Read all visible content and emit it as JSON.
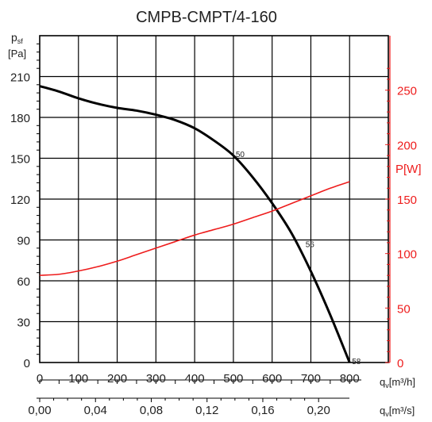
{
  "chart_data": {
    "type": "line",
    "title": "CMPB-CMPT/4-160",
    "colors": {
      "pressure": "#000000",
      "power": "#ee1c1c",
      "grid": "#000000"
    },
    "x_axis": {
      "label_main": "q",
      "label_sub": "v",
      "label_unit": "[m³/h]",
      "range": [
        0,
        900
      ],
      "ticks": [
        0,
        100,
        200,
        300,
        400,
        500,
        600,
        700,
        800
      ]
    },
    "x2_axis": {
      "label_main": "q",
      "label_sub": "v",
      "label_unit": "[m³/s]",
      "ticks": [
        "0,00",
        "0,04",
        "0,08",
        "0,12",
        "0,16",
        "0,20"
      ],
      "tick_values_m3h": [
        0,
        144,
        288,
        432,
        576,
        720
      ]
    },
    "y_axis": {
      "label_main": "p",
      "label_sub": "sf",
      "label_unit": "[Pa]",
      "range": [
        0,
        240
      ],
      "ticks": [
        0,
        30,
        60,
        90,
        120,
        150,
        180,
        210
      ]
    },
    "y2_axis": {
      "label": "P[W]",
      "range": [
        0,
        300
      ],
      "ticks": [
        0,
        50,
        100,
        150,
        200,
        250
      ]
    },
    "series": [
      {
        "axis": "left",
        "x": [
          0,
          50,
          100,
          150,
          200,
          250,
          300,
          350,
          400,
          450,
          500,
          550,
          600,
          650,
          700,
          750,
          800
        ],
        "y": [
          203,
          199,
          194,
          190,
          187,
          185,
          182,
          178,
          172,
          163,
          152,
          136,
          117,
          95,
          67,
          35,
          0
        ]
      },
      {
        "axis": "right",
        "x": [
          0,
          50,
          100,
          150,
          200,
          250,
          300,
          350,
          400,
          450,
          500,
          550,
          600,
          650,
          700,
          750,
          800
        ],
        "y": [
          80,
          81,
          84,
          88,
          93,
          99,
          105,
          111,
          117,
          122,
          127,
          133,
          139,
          146,
          153,
          160,
          166
        ]
      }
    ],
    "annotations": [
      {
        "text": "50",
        "x": 500,
        "y": 152
      },
      {
        "text": "56",
        "x": 680,
        "y": 86
      },
      {
        "text": "58",
        "x": 800,
        "y": 0
      }
    ],
    "grid": true
  }
}
